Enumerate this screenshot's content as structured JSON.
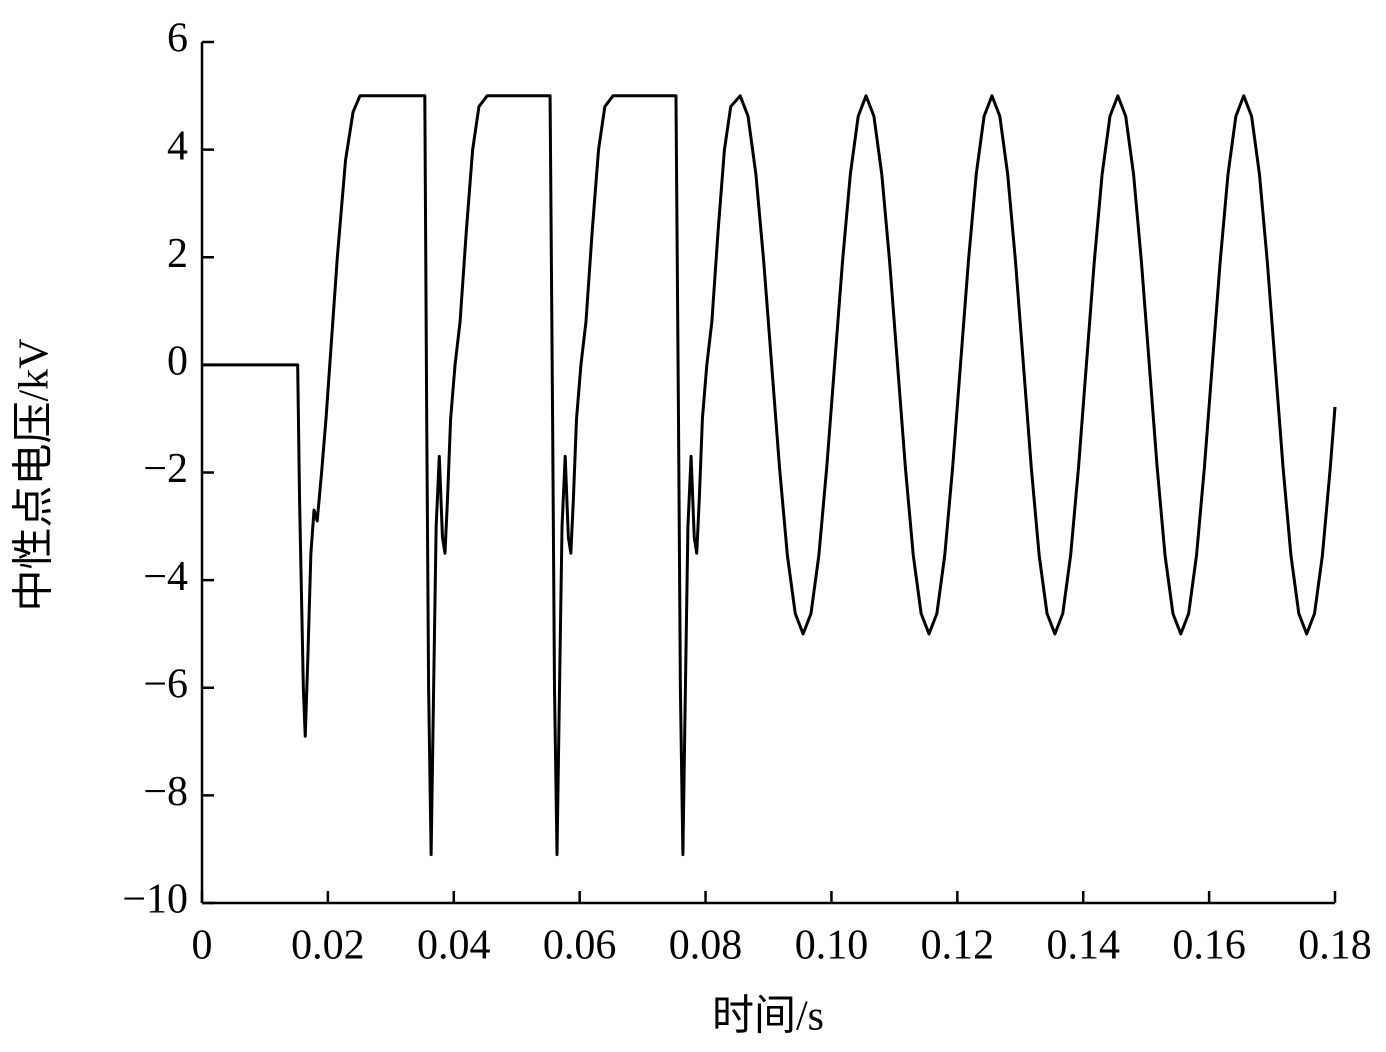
{
  "chart_data": {
    "type": "line",
    "x_label": "时间/s",
    "y_label": "中性点电压/kV",
    "xlim": [
      0,
      0.18
    ],
    "ylim": [
      -10,
      6
    ],
    "xticks": [
      0,
      0.02,
      0.04,
      0.06,
      0.08,
      {
        "value": 0.1,
        "label": "0.10"
      },
      0.12,
      0.14,
      0.16,
      0.18
    ],
    "yticks": [
      {
        "value": -10,
        "label": "−10"
      },
      {
        "value": -8,
        "label": "−8"
      },
      {
        "value": -6,
        "label": "−6"
      },
      {
        "value": -4,
        "label": "−4"
      },
      {
        "value": -2,
        "label": "−2"
      },
      0,
      2,
      4,
      6
    ],
    "color": "#000000",
    "x": [
      0,
      0.0152,
      0.0155,
      0.0161,
      0.0164,
      0.0168,
      0.0173,
      0.0178,
      0.0183,
      0.019,
      0.0197,
      0.0203,
      0.0215,
      0.0228,
      0.024,
      0.0251,
      0.0354,
      0.0357,
      0.036,
      0.0364,
      0.0368,
      0.0372,
      0.0377,
      0.0382,
      0.0386,
      0.039,
      0.0395,
      0.0402,
      0.041,
      0.042,
      0.043,
      0.044,
      0.0453,
      0.0553,
      0.0557,
      0.056,
      0.0564,
      0.0568,
      0.0572,
      0.0577,
      0.0582,
      0.0586,
      0.059,
      0.0595,
      0.0602,
      0.061,
      0.062,
      0.063,
      0.064,
      0.0653,
      0.0753,
      0.0757,
      0.076,
      0.0764,
      0.0768,
      0.0772,
      0.0777,
      0.0782,
      0.0786,
      0.079,
      0.0795,
      0.0802,
      0.081,
      0.082,
      0.083,
      0.084,
      0.0855,
      0.08675,
      0.088,
      0.08925,
      0.0905,
      0.09175,
      0.093,
      0.09425,
      0.0955,
      0.09675,
      0.098,
      0.09925,
      0.1005,
      0.10175,
      0.103,
      0.10425,
      0.1055,
      0.10675,
      0.108,
      0.10925,
      0.1105,
      0.11175,
      0.113,
      0.11425,
      0.1155,
      0.11675,
      0.118,
      0.11925,
      0.1205,
      0.12175,
      0.123,
      0.12425,
      0.1255,
      0.12675,
      0.128,
      0.12925,
      0.1305,
      0.13175,
      0.133,
      0.13425,
      0.1355,
      0.13675,
      0.138,
      0.13925,
      0.1405,
      0.14175,
      0.143,
      0.14425,
      0.1455,
      0.14675,
      0.148,
      0.14925,
      0.1505,
      0.15175,
      0.153,
      0.15425,
      0.1555,
      0.15675,
      0.158,
      0.15925,
      0.1605,
      0.16175,
      0.163,
      0.16425,
      0.1655,
      0.16675,
      0.168,
      0.16925,
      0.1705,
      0.17175,
      0.173,
      0.17425,
      0.1755,
      0.17675,
      0.178,
      0.17925,
      0.18
    ],
    "values": [
      0,
      0,
      -2.5,
      -6.0,
      -6.9,
      -5.5,
      -3.5,
      -2.7,
      -2.9,
      -2.0,
      -1.0,
      0,
      2.0,
      3.8,
      4.7,
      5.0,
      5.0,
      -1.0,
      -6.0,
      -9.1,
      -6.0,
      -3.0,
      -1.7,
      -3.2,
      -3.5,
      -2.5,
      -1.0,
      0,
      0.8,
      2.5,
      4.0,
      4.8,
      5.0,
      5.0,
      -1.0,
      -6.0,
      -9.1,
      -6.0,
      -3.0,
      -1.7,
      -3.2,
      -3.5,
      -2.5,
      -1.0,
      0,
      0.8,
      2.5,
      4.0,
      4.8,
      5.0,
      5.0,
      -1.0,
      -6.0,
      -9.1,
      -6.0,
      -3.0,
      -1.7,
      -3.2,
      -3.5,
      -2.5,
      -1.0,
      0,
      0.8,
      2.5,
      4.0,
      4.8,
      5.0,
      4.62,
      3.54,
      1.91,
      0,
      -1.91,
      -3.54,
      -4.62,
      -5,
      -4.62,
      -3.54,
      -1.91,
      0,
      1.91,
      3.54,
      4.62,
      5,
      4.62,
      3.54,
      1.91,
      0,
      -1.91,
      -3.54,
      -4.62,
      -5,
      -4.62,
      -3.54,
      -1.91,
      0,
      1.91,
      3.54,
      4.62,
      5,
      4.62,
      3.54,
      1.91,
      0,
      -1.91,
      -3.54,
      -4.62,
      -5,
      -4.62,
      -3.54,
      -1.91,
      0,
      1.91,
      3.54,
      4.62,
      5,
      4.62,
      3.54,
      1.91,
      0,
      -1.91,
      -3.54,
      -4.62,
      -5,
      -4.62,
      -3.54,
      -1.91,
      0,
      1.91,
      3.54,
      4.62,
      5,
      4.62,
      3.54,
      1.91,
      0,
      -1.91,
      -3.54,
      -4.62,
      -5,
      -4.62,
      -3.54,
      -1.91,
      -0.78
    ]
  }
}
